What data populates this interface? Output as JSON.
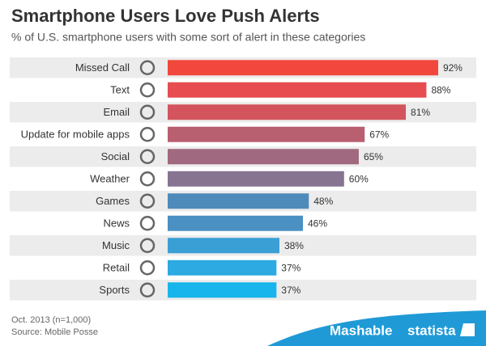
{
  "chart_data": {
    "type": "bar",
    "orientation": "horizontal",
    "title": "Smartphone Users Love Push Alerts",
    "subtitle": "% of U.S. smartphone users with some sort of alert in these categories",
    "categories": [
      "Missed Call",
      "Text",
      "Email",
      "Update for mobile apps",
      "Social",
      "Weather",
      "Games",
      "News",
      "Music",
      "Retail",
      "Sports"
    ],
    "values": [
      92,
      88,
      81,
      67,
      65,
      60,
      48,
      46,
      38,
      37,
      37
    ],
    "value_labels": [
      "92%",
      "88%",
      "81%",
      "67%",
      "65%",
      "60%",
      "48%",
      "46%",
      "38%",
      "37%",
      "37%"
    ],
    "colors": [
      "#f2473c",
      "#e64c50",
      "#d3545d",
      "#b85f70",
      "#a1697f",
      "#867491",
      "#4f8bba",
      "#4a90c2",
      "#3a9fd5",
      "#2caae1",
      "#17b5ec"
    ],
    "notes": [
      "Oct. 2013 (n=1,000)",
      "Source: Mobile Posse"
    ],
    "brands": [
      "Mashable",
      "statista"
    ]
  }
}
